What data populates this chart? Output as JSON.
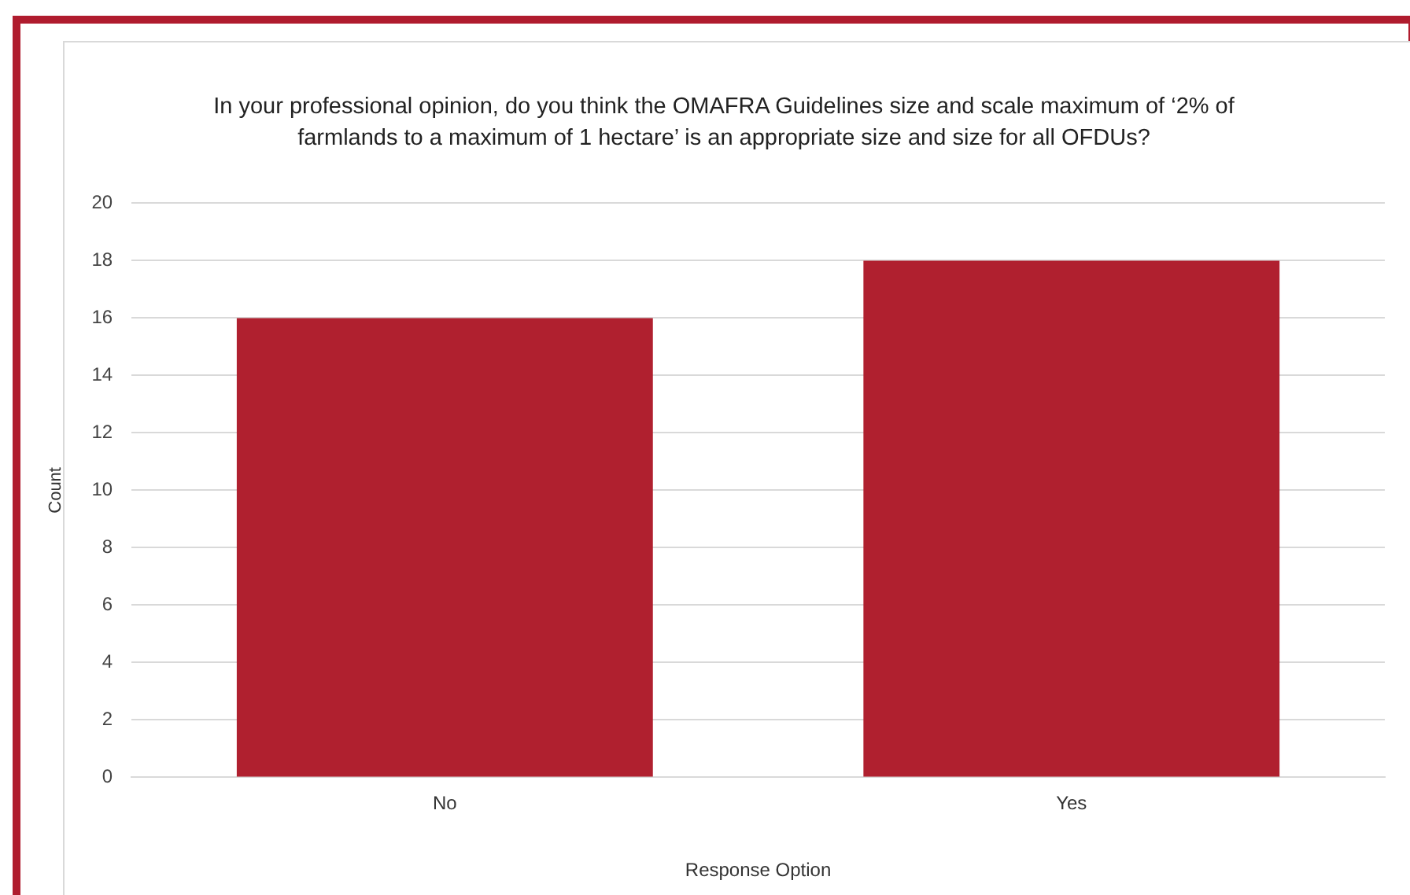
{
  "chart_data": {
    "type": "bar",
    "title": "In your professional opinion, do you think the OMAFRA Guidelines size and scale maximum of ‘2% of farmlands to a maximum of 1 hectare’ is an appropriate size and size for all OFDUs?",
    "xlabel": "Response Option",
    "ylabel": "Count",
    "categories": [
      "No",
      "Yes"
    ],
    "values": [
      16,
      18
    ],
    "color": "#b0202f",
    "ylim": [
      0,
      20
    ],
    "yticks": [
      0,
      2,
      4,
      6,
      8,
      10,
      12,
      14,
      16,
      18,
      20
    ],
    "grid": "y",
    "legend": false
  }
}
